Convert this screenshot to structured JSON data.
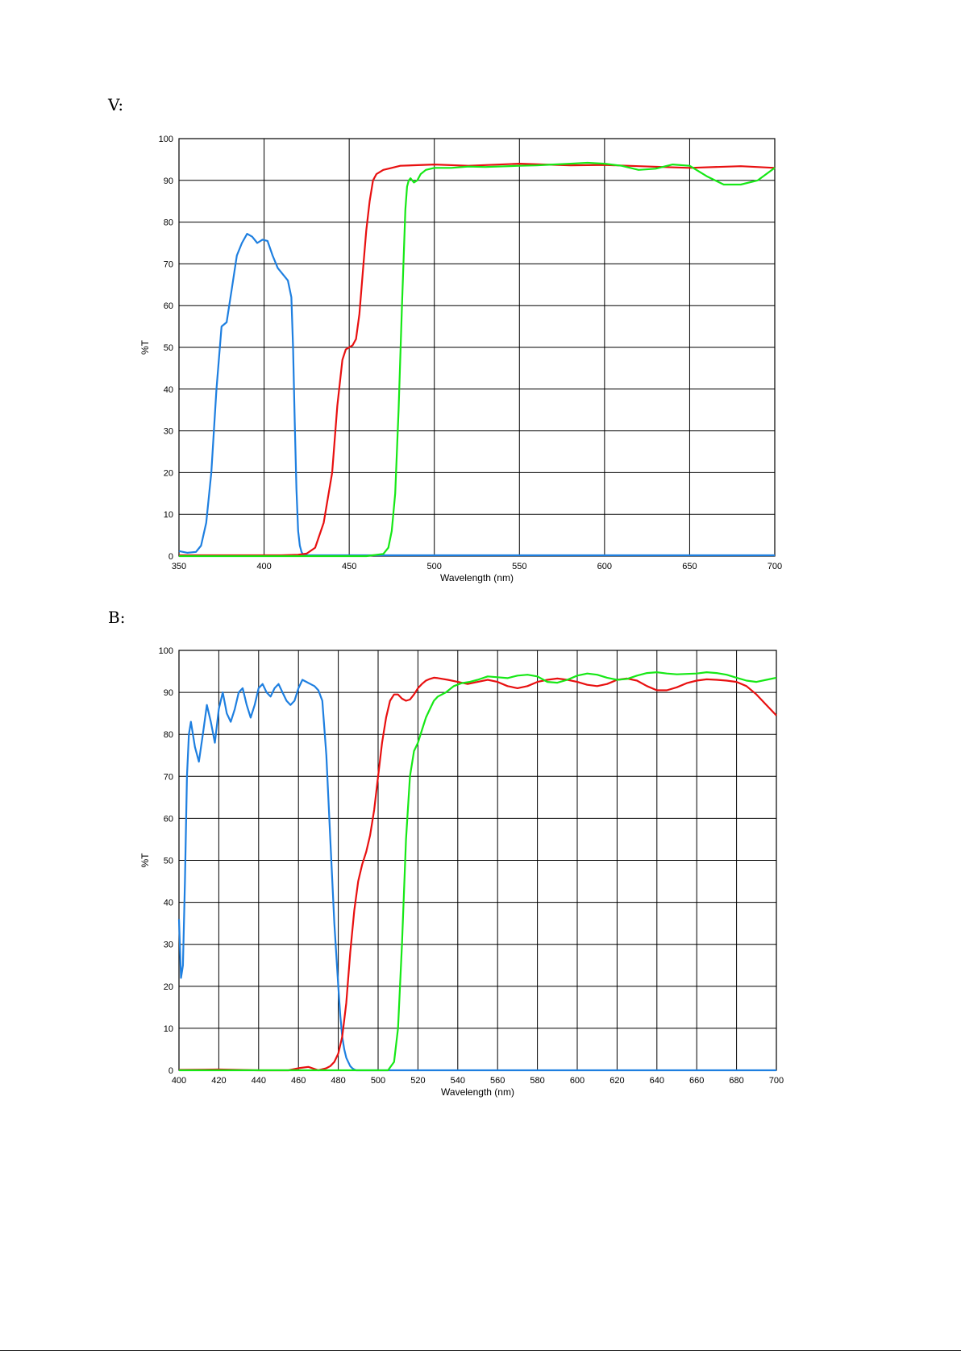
{
  "panels": [
    {
      "label": "V:"
    },
    {
      "label": "B:"
    }
  ],
  "chart_data": [
    {
      "type": "line",
      "xlabel": "Wavelength (nm)",
      "ylabel": "%T",
      "xlim": [
        350,
        700
      ],
      "ylim": [
        0,
        100
      ],
      "xticks": [
        350,
        400,
        450,
        500,
        550,
        600,
        650,
        700
      ],
      "yticks": [
        0,
        10,
        20,
        30,
        40,
        50,
        60,
        70,
        80,
        90,
        100
      ],
      "grid": true,
      "series": [
        {
          "color": "#1e7fe0",
          "x": [
            350,
            355,
            360,
            363,
            366,
            369,
            372,
            375,
            378,
            381,
            384,
            387,
            390,
            393,
            396,
            399,
            402,
            405,
            408,
            411,
            414,
            416,
            417,
            418,
            419,
            420,
            421,
            422,
            423,
            425,
            430,
            700
          ],
          "y": [
            1.2,
            0.8,
            1.0,
            2.5,
            8,
            20,
            40,
            55,
            56,
            64,
            72,
            75,
            77.2,
            76.5,
            75,
            75.8,
            75.5,
            72,
            69,
            67.5,
            66,
            62,
            50,
            32,
            16,
            6,
            2.5,
            1,
            0.3,
            0.2,
            0.2,
            0.2
          ]
        },
        {
          "color": "#e81010",
          "x": [
            350,
            380,
            410,
            420,
            425,
            430,
            435,
            440,
            443,
            446,
            448,
            450,
            452,
            454,
            456,
            458,
            460,
            462,
            464,
            466,
            468,
            470,
            475,
            480,
            500,
            520,
            550,
            580,
            600,
            620,
            650,
            680,
            700
          ],
          "y": [
            0.2,
            0.2,
            0.2,
            0.3,
            0.6,
            2,
            8,
            20,
            36,
            47,
            49.5,
            50,
            50.5,
            52,
            58,
            68,
            78,
            85,
            90,
            91.5,
            92,
            92.5,
            93,
            93.5,
            93.8,
            93.5,
            94,
            93.6,
            93.7,
            93.4,
            93,
            93.4,
            93
          ]
        },
        {
          "color": "#16e816",
          "x": [
            350,
            460,
            470,
            473,
            475,
            477,
            479,
            481,
            483,
            484,
            485,
            486,
            487,
            488,
            490,
            492,
            495,
            500,
            510,
            520,
            530,
            550,
            560,
            570,
            580,
            590,
            600,
            610,
            620,
            630,
            640,
            650,
            660,
            670,
            680,
            690,
            700
          ],
          "y": [
            0,
            0,
            0.5,
            2,
            6,
            15,
            35,
            60,
            83,
            88.5,
            90,
            90.5,
            90,
            89.5,
            90,
            91.5,
            92.5,
            93,
            93,
            93.3,
            93.2,
            93.5,
            93.6,
            93.8,
            94,
            94.2,
            94,
            93.5,
            92.5,
            92.8,
            93.8,
            93.5,
            91,
            89,
            89,
            90,
            93
          ]
        }
      ]
    },
    {
      "type": "line",
      "xlabel": "Wavelength (nm)",
      "ylabel": "%T",
      "xlim": [
        400,
        700
      ],
      "ylim": [
        0,
        100
      ],
      "xticks": [
        400,
        420,
        440,
        460,
        480,
        500,
        520,
        540,
        560,
        580,
        600,
        620,
        640,
        660,
        680,
        700
      ],
      "yticks": [
        0,
        10,
        20,
        30,
        40,
        50,
        60,
        70,
        80,
        90,
        100
      ],
      "grid": true,
      "series": [
        {
          "color": "#1e7fe0",
          "x": [
            400,
            401,
            402,
            403,
            404,
            405,
            406,
            407,
            408,
            410,
            412,
            414,
            416,
            418,
            420,
            422,
            424,
            426,
            428,
            430,
            432,
            434,
            436,
            438,
            440,
            442,
            444,
            446,
            448,
            450,
            452,
            454,
            456,
            458,
            460,
            462,
            464,
            466,
            468,
            470,
            472,
            474,
            476,
            478,
            480,
            481,
            482,
            483,
            484,
            485,
            486,
            487,
            488,
            489,
            490,
            492,
            495,
            500,
            700
          ],
          "y": [
            36,
            22,
            25,
            45,
            70,
            80,
            83,
            80,
            77,
            73.5,
            80,
            87,
            83,
            78,
            86,
            90,
            85,
            83,
            86,
            90,
            91,
            87,
            84,
            87,
            91,
            92,
            90,
            89,
            91,
            92,
            90,
            88,
            87,
            88,
            91,
            93,
            92.5,
            92,
            91.5,
            90.5,
            88,
            75,
            55,
            35,
            20,
            13,
            8,
            5,
            3,
            2,
            1,
            0.5,
            0.2,
            0,
            0,
            0,
            0,
            0,
            0
          ]
        },
        {
          "color": "#e81010",
          "x": [
            400,
            420,
            440,
            455,
            460,
            465,
            470,
            474,
            476,
            478,
            480,
            482,
            484,
            486,
            488,
            490,
            492,
            494,
            496,
            498,
            500,
            502,
            504,
            506,
            508,
            510,
            512,
            514,
            516,
            518,
            520,
            522,
            524,
            526,
            528,
            530,
            535,
            540,
            545,
            550,
            555,
            560,
            565,
            570,
            575,
            580,
            585,
            590,
            595,
            600,
            605,
            610,
            615,
            620,
            625,
            630,
            635,
            640,
            645,
            650,
            655,
            660,
            665,
            670,
            675,
            680,
            685,
            690,
            695,
            700
          ],
          "y": [
            0.1,
            0.2,
            0,
            0,
            0.5,
            0.8,
            0,
            0.5,
            1,
            2,
            4,
            8,
            16,
            28,
            38,
            45,
            49,
            52,
            56,
            62,
            70,
            78,
            84,
            88,
            89.5,
            89.5,
            88.5,
            88,
            88.3,
            89.5,
            91,
            92,
            92.8,
            93.2,
            93.5,
            93.4,
            93,
            92.5,
            92,
            92.5,
            93,
            92.5,
            91.5,
            91,
            91.5,
            92.5,
            93,
            93.3,
            93,
            92.5,
            91.8,
            91.5,
            92,
            93,
            93.3,
            92.8,
            91.5,
            90.5,
            90.5,
            91.2,
            92.2,
            92.8,
            93.1,
            93,
            92.8,
            92.5,
            91.5,
            89.5,
            87,
            84.5
          ]
        },
        {
          "color": "#16e816",
          "x": [
            400,
            500,
            505,
            508,
            510,
            512,
            514,
            516,
            518,
            520,
            522,
            524,
            526,
            528,
            530,
            534,
            538,
            542,
            546,
            550,
            555,
            560,
            565,
            570,
            575,
            580,
            585,
            590,
            595,
            600,
            605,
            610,
            615,
            620,
            625,
            630,
            635,
            640,
            645,
            650,
            655,
            660,
            665,
            670,
            675,
            680,
            685,
            690,
            695,
            700
          ],
          "y": [
            0,
            0,
            0,
            2,
            10,
            30,
            55,
            70,
            76,
            78,
            81,
            84,
            86,
            88,
            89,
            90,
            91.5,
            92.2,
            92.5,
            93,
            93.8,
            93.6,
            93.4,
            94,
            94.2,
            93.8,
            92.5,
            92.3,
            93,
            94,
            94.5,
            94.2,
            93.5,
            93,
            93.2,
            94,
            94.6,
            94.8,
            94.5,
            94.3,
            94.4,
            94.5,
            94.8,
            94.6,
            94.2,
            93.5,
            92.8,
            92.5,
            93,
            93.5
          ]
        }
      ]
    }
  ]
}
